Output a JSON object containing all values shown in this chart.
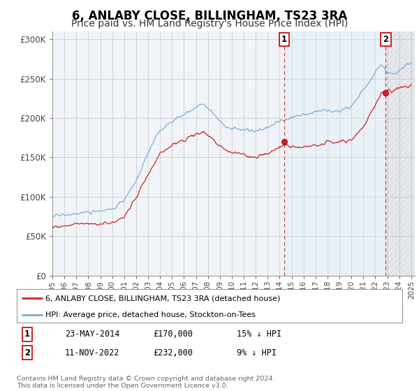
{
  "title": "6, ANLABY CLOSE, BILLINGHAM, TS23 3RA",
  "subtitle": "Price paid vs. HM Land Registry's House Price Index (HPI)",
  "title_fontsize": 12,
  "subtitle_fontsize": 10,
  "ylim": [
    0,
    310000
  ],
  "yticks": [
    0,
    50000,
    100000,
    150000,
    200000,
    250000,
    300000
  ],
  "ytick_labels": [
    "£0",
    "£50K",
    "£100K",
    "£150K",
    "£200K",
    "£250K",
    "£300K"
  ],
  "hpi_color": "#7aadd4",
  "price_color": "#cc2222",
  "marker1_year": 2014.38,
  "marker2_year": 2022.87,
  "marker1_price": 170000,
  "marker2_price": 232000,
  "legend_label1": "6, ANLABY CLOSE, BILLINGHAM, TS23 3RA (detached house)",
  "legend_label2": "HPI: Average price, detached house, Stockton-on-Tees",
  "table_row1": [
    "1",
    "23-MAY-2014",
    "£170,000",
    "15% ↓ HPI"
  ],
  "table_row2": [
    "2",
    "11-NOV-2022",
    "£232,000",
    "9% ↓ HPI"
  ],
  "footer": "Contains HM Land Registry data © Crown copyright and database right 2024.\nThis data is licensed under the Open Government Licence v3.0.",
  "bg_color": "#f0f4f8",
  "grid_color": "#cccccc",
  "shade_color": "#ddeaf5",
  "hatch_color": "#cccccc"
}
